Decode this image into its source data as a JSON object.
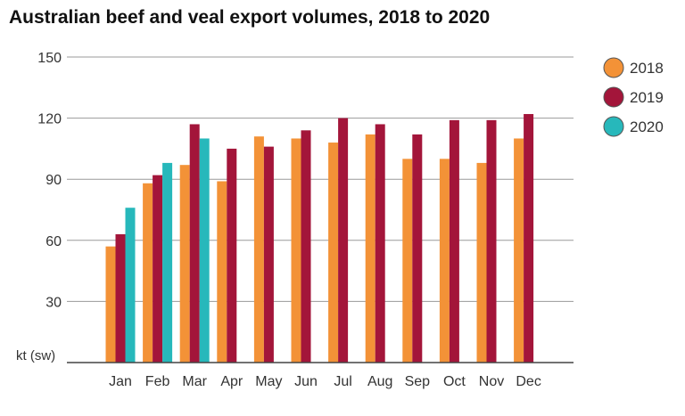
{
  "chart_data": {
    "type": "bar",
    "title": "Australian beef and veal export volumes, 2018 to 2020",
    "xlabel": "",
    "ylabel": "kt (sw)",
    "ylim": [
      0,
      150
    ],
    "yticks": [
      30,
      60,
      90,
      120,
      150
    ],
    "grid": true,
    "legend_position": "right",
    "categories": [
      "Jan",
      "Feb",
      "Mar",
      "Apr",
      "May",
      "Jun",
      "Jul",
      "Aug",
      "Sep",
      "Oct",
      "Nov",
      "Dec"
    ],
    "series": [
      {
        "name": "2018",
        "color": "#f39237",
        "values": [
          57,
          88,
          97,
          89,
          111,
          110,
          108,
          112,
          100,
          100,
          98,
          110
        ]
      },
      {
        "name": "2019",
        "color": "#a3153a",
        "values": [
          63,
          92,
          117,
          105,
          106,
          114,
          120,
          117,
          112,
          119,
          119,
          122
        ]
      },
      {
        "name": "2020",
        "color": "#27b8bb",
        "values": [
          76,
          98,
          110,
          null,
          null,
          null,
          null,
          null,
          null,
          null,
          null,
          null
        ]
      }
    ]
  }
}
